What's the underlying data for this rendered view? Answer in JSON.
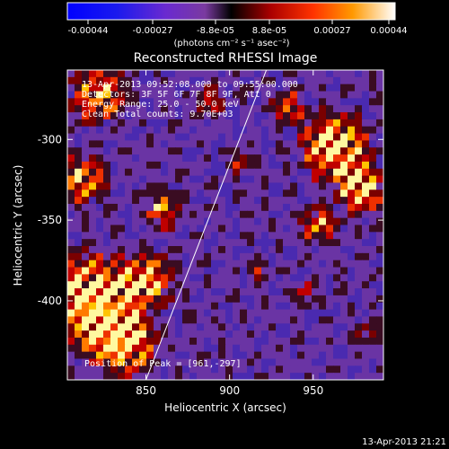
{
  "colorbar": {
    "ticks": [
      "-0.00044",
      "-0.00027",
      "-8.8e-05",
      "8.8e-05",
      "0.00027",
      "0.00044"
    ],
    "unit_label": "(photons cm⁻² s⁻¹ asec⁻²)",
    "range": [
      -0.00044,
      0.00044
    ]
  },
  "chart_data": {
    "type": "heatmap",
    "title": "Reconstructed RHESSI Image",
    "xlabel": "Heliocentric X (arcsec)",
    "ylabel": "Heliocentric Y (arcsec)",
    "xlim": [
      803,
      992
    ],
    "ylim": [
      -449,
      -257
    ],
    "x_ticks": [
      850,
      900,
      950
    ],
    "y_ticks": [
      -300,
      -350,
      -400
    ],
    "annotations": [
      "13-Apr-2013 09:52:08.000 to 09:55:00.000",
      "Detectors: 3F 5F 6F 7F 8F 9F, Att 0",
      "Energy Range: 25.0 - 50.0 keV",
      "Clean     Total counts: 9.70E+03"
    ],
    "peak_label": "Position of Peak = [961,-297]",
    "limb_line": [
      [
        850,
        -449
      ],
      [
        922,
        -257
      ]
    ]
  },
  "timestamp": "13-Apr-2013 21:21"
}
